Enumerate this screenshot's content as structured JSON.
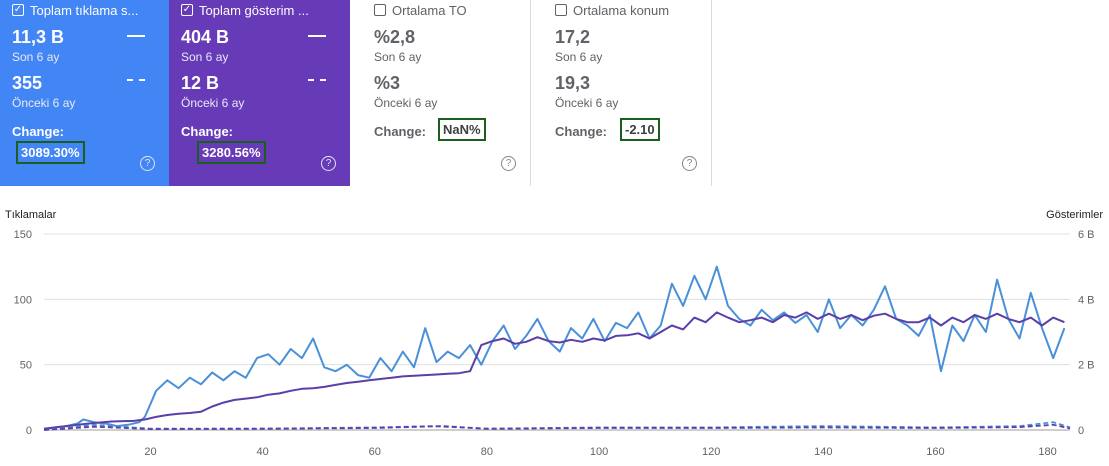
{
  "cards": [
    {
      "title": "Toplam tıklama s...",
      "checked": true,
      "current_value": "11,3 B",
      "current_label": "Son 6 ay",
      "prev_value": "355",
      "prev_label": "Önceki 6 ay",
      "change_label": "Change:",
      "change_value": "3089.30%",
      "color": "#4285f4"
    },
    {
      "title": "Toplam gösterim ...",
      "checked": true,
      "current_value": "404 B",
      "current_label": "Son 6 ay",
      "prev_value": "12 B",
      "prev_label": "Önceki 6 ay",
      "change_label": "Change:",
      "change_value": "3280.56%",
      "color": "#673ab7"
    },
    {
      "title": "Ortalama TO",
      "checked": false,
      "current_value": "%2,8",
      "current_label": "Son 6 ay",
      "prev_value": "%3",
      "prev_label": "Önceki 6 ay",
      "change_label": "Change:",
      "change_value": "NaN%"
    },
    {
      "title": "Ortalama konum",
      "checked": false,
      "current_value": "17,2",
      "current_label": "Son 6 ay",
      "prev_value": "19,3",
      "prev_label": "Önceki 6 ay",
      "change_label": "Change:",
      "change_value": "-2.10"
    }
  ],
  "chart_data": {
    "type": "line",
    "ylabel": "Tıklamalar",
    "y2label": "Gösterimler",
    "y_ticks": [
      "150",
      "100",
      "50",
      "0"
    ],
    "y2_ticks": [
      "6 B",
      "4 B",
      "2 B",
      "0"
    ],
    "x_ticks": [
      "20",
      "40",
      "60",
      "80",
      "100",
      "120",
      "140",
      "160",
      "180"
    ],
    "xlim": [
      1,
      184
    ],
    "ylim": [
      0,
      150
    ],
    "y2lim": [
      0,
      6000
    ],
    "colors": {
      "clicks": "#4a90d9",
      "impressions": "#5b3fa8"
    },
    "series": [
      {
        "axis": "left",
        "style": "solid",
        "key": "clicks",
        "points": [
          [
            1,
            1
          ],
          [
            3,
            2
          ],
          [
            5,
            3
          ],
          [
            7,
            5
          ],
          [
            8,
            8
          ],
          [
            10,
            6
          ],
          [
            12,
            5
          ],
          [
            14,
            3
          ],
          [
            16,
            4
          ],
          [
            18,
            6
          ],
          [
            19,
            10
          ],
          [
            20,
            20
          ],
          [
            21,
            30
          ],
          [
            23,
            38
          ],
          [
            25,
            32
          ],
          [
            27,
            40
          ],
          [
            29,
            35
          ],
          [
            31,
            44
          ],
          [
            33,
            38
          ],
          [
            35,
            45
          ],
          [
            37,
            40
          ],
          [
            39,
            55
          ],
          [
            41,
            58
          ],
          [
            43,
            50
          ],
          [
            45,
            62
          ],
          [
            47,
            55
          ],
          [
            49,
            70
          ],
          [
            51,
            48
          ],
          [
            53,
            45
          ],
          [
            55,
            50
          ],
          [
            57,
            42
          ],
          [
            59,
            40
          ],
          [
            61,
            55
          ],
          [
            63,
            45
          ],
          [
            65,
            60
          ],
          [
            67,
            48
          ],
          [
            69,
            78
          ],
          [
            71,
            52
          ],
          [
            73,
            60
          ],
          [
            75,
            55
          ],
          [
            77,
            65
          ],
          [
            79,
            50
          ],
          [
            81,
            68
          ],
          [
            83,
            80
          ],
          [
            85,
            62
          ],
          [
            87,
            72
          ],
          [
            89,
            85
          ],
          [
            91,
            68
          ],
          [
            93,
            60
          ],
          [
            95,
            78
          ],
          [
            97,
            70
          ],
          [
            99,
            85
          ],
          [
            101,
            68
          ],
          [
            103,
            82
          ],
          [
            105,
            78
          ],
          [
            107,
            90
          ],
          [
            109,
            70
          ],
          [
            111,
            80
          ],
          [
            113,
            112
          ],
          [
            115,
            95
          ],
          [
            117,
            118
          ],
          [
            119,
            100
          ],
          [
            121,
            125
          ],
          [
            123,
            95
          ],
          [
            125,
            85
          ],
          [
            127,
            80
          ],
          [
            129,
            92
          ],
          [
            131,
            84
          ],
          [
            133,
            90
          ],
          [
            135,
            82
          ],
          [
            137,
            88
          ],
          [
            139,
            75
          ],
          [
            141,
            100
          ],
          [
            143,
            78
          ],
          [
            145,
            88
          ],
          [
            147,
            80
          ],
          [
            149,
            92
          ],
          [
            151,
            110
          ],
          [
            153,
            85
          ],
          [
            155,
            80
          ],
          [
            157,
            72
          ],
          [
            159,
            88
          ],
          [
            161,
            45
          ],
          [
            163,
            80
          ],
          [
            165,
            68
          ],
          [
            167,
            88
          ],
          [
            169,
            75
          ],
          [
            171,
            115
          ],
          [
            173,
            85
          ],
          [
            175,
            70
          ],
          [
            177,
            105
          ],
          [
            179,
            78
          ],
          [
            181,
            55
          ],
          [
            183,
            78
          ]
        ]
      },
      {
        "axis": "right",
        "style": "solid",
        "key": "impressions",
        "points": [
          [
            1,
            40
          ],
          [
            5,
            120
          ],
          [
            9,
            200
          ],
          [
            13,
            260
          ],
          [
            17,
            280
          ],
          [
            19,
            320
          ],
          [
            21,
            400
          ],
          [
            23,
            460
          ],
          [
            25,
            500
          ],
          [
            27,
            520
          ],
          [
            29,
            560
          ],
          [
            31,
            720
          ],
          [
            33,
            840
          ],
          [
            35,
            920
          ],
          [
            37,
            960
          ],
          [
            39,
            1000
          ],
          [
            41,
            1080
          ],
          [
            43,
            1120
          ],
          [
            45,
            1200
          ],
          [
            47,
            1260
          ],
          [
            49,
            1280
          ],
          [
            51,
            1320
          ],
          [
            53,
            1380
          ],
          [
            55,
            1440
          ],
          [
            57,
            1480
          ],
          [
            59,
            1520
          ],
          [
            61,
            1560
          ],
          [
            63,
            1600
          ],
          [
            65,
            1640
          ],
          [
            67,
            1660
          ],
          [
            69,
            1680
          ],
          [
            71,
            1700
          ],
          [
            73,
            1720
          ],
          [
            75,
            1740
          ],
          [
            77,
            1800
          ],
          [
            79,
            2600
          ],
          [
            81,
            2720
          ],
          [
            83,
            2800
          ],
          [
            85,
            2640
          ],
          [
            87,
            2700
          ],
          [
            89,
            2840
          ],
          [
            91,
            2720
          ],
          [
            93,
            2680
          ],
          [
            95,
            2760
          ],
          [
            97,
            2700
          ],
          [
            99,
            2800
          ],
          [
            101,
            2740
          ],
          [
            103,
            2880
          ],
          [
            105,
            2900
          ],
          [
            107,
            2960
          ],
          [
            109,
            2800
          ],
          [
            111,
            3000
          ],
          [
            113,
            3200
          ],
          [
            115,
            3080
          ],
          [
            117,
            3440
          ],
          [
            119,
            3300
          ],
          [
            121,
            3600
          ],
          [
            123,
            3440
          ],
          [
            125,
            3300
          ],
          [
            127,
            3360
          ],
          [
            129,
            3440
          ],
          [
            131,
            3300
          ],
          [
            133,
            3520
          ],
          [
            135,
            3440
          ],
          [
            137,
            3600
          ],
          [
            139,
            3400
          ],
          [
            141,
            3560
          ],
          [
            143,
            3400
          ],
          [
            145,
            3520
          ],
          [
            147,
            3360
          ],
          [
            149,
            3500
          ],
          [
            151,
            3560
          ],
          [
            153,
            3400
          ],
          [
            155,
            3300
          ],
          [
            157,
            3300
          ],
          [
            159,
            3440
          ],
          [
            161,
            3200
          ],
          [
            163,
            3440
          ],
          [
            165,
            3300
          ],
          [
            167,
            3520
          ],
          [
            169,
            3400
          ],
          [
            171,
            3560
          ],
          [
            173,
            3400
          ],
          [
            175,
            3300
          ],
          [
            177,
            3440
          ],
          [
            179,
            3200
          ],
          [
            181,
            3440
          ],
          [
            183,
            3300
          ]
        ]
      },
      {
        "axis": "left",
        "style": "dashed",
        "key": "clicks",
        "points": [
          [
            1,
            0
          ],
          [
            10,
            4
          ],
          [
            20,
            1
          ],
          [
            40,
            1
          ],
          [
            60,
            2
          ],
          [
            70,
            3
          ],
          [
            80,
            1
          ],
          [
            100,
            2
          ],
          [
            120,
            2
          ],
          [
            140,
            3
          ],
          [
            160,
            2
          ],
          [
            175,
            3
          ],
          [
            181,
            6
          ],
          [
            184,
            2
          ]
        ]
      },
      {
        "axis": "right",
        "style": "dashed",
        "key": "impressions",
        "points": [
          [
            1,
            0
          ],
          [
            10,
            100
          ],
          [
            20,
            30
          ],
          [
            40,
            40
          ],
          [
            60,
            60
          ],
          [
            72,
            120
          ],
          [
            80,
            40
          ],
          [
            100,
            60
          ],
          [
            120,
            60
          ],
          [
            140,
            80
          ],
          [
            160,
            60
          ],
          [
            175,
            90
          ],
          [
            181,
            160
          ],
          [
            184,
            50
          ]
        ]
      }
    ]
  }
}
